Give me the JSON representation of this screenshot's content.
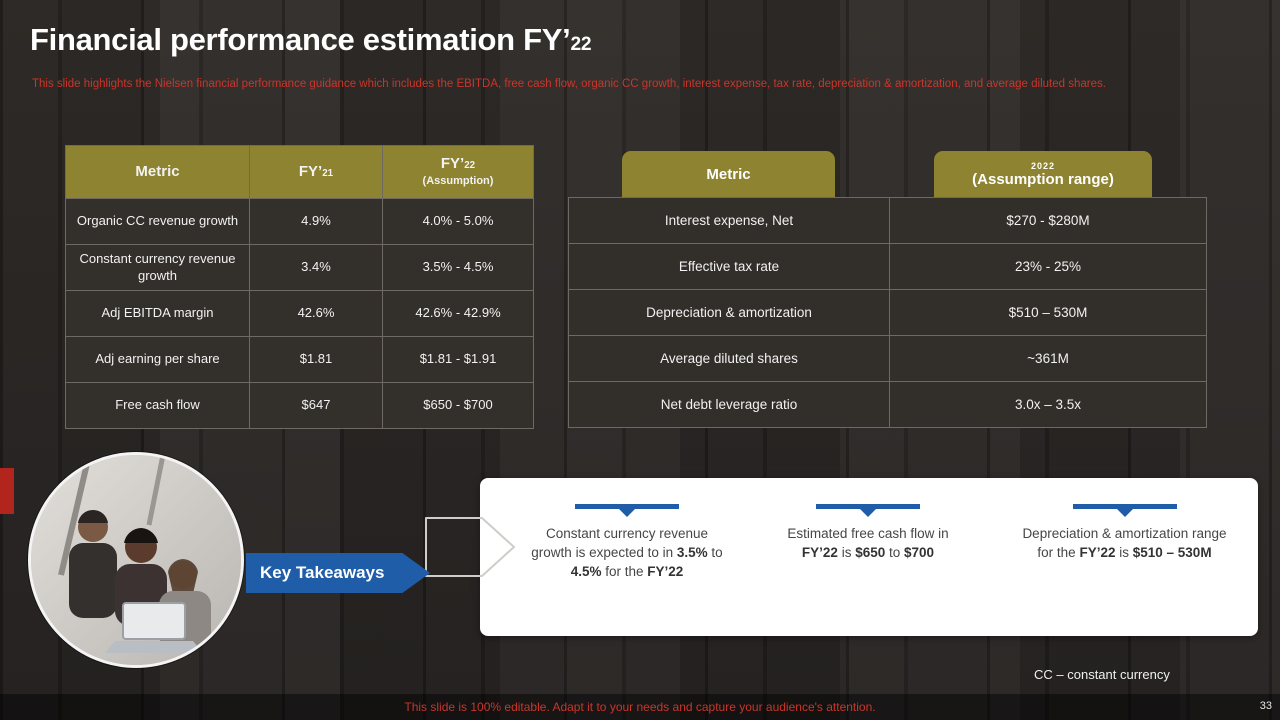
{
  "colors": {
    "gold": "#8e8330",
    "blue": "#1f5da8",
    "red": "#c9362b"
  },
  "slide": {
    "title": {
      "main": "Financial performance estimation FY’",
      "sub": "22"
    },
    "subtitle": "This slide highlights the Nielsen financial performance guidance which includes the EBITDA, free cash flow, organic CC growth, interest expense, tax rate, depreciation & amortization, and average diluted shares.",
    "footnote": "CC – constant currency",
    "footer": "This slide is 100% editable. Adapt it to your needs and capture your audience's attention.",
    "page_number": "33"
  },
  "left_table": {
    "headers": {
      "metric": "Metric",
      "fy21_main": "FY’",
      "fy21_sub": "21",
      "fy22_main": "FY’",
      "fy22_sub": "22",
      "fy22_note": "(Assumption)"
    },
    "rows": [
      [
        "Organic CC revenue growth",
        "4.9%",
        "4.0% - 5.0%"
      ],
      [
        "Constant currency revenue growth",
        "3.4%",
        "3.5% - 4.5%"
      ],
      [
        "Adj EBITDA margin",
        "42.6%",
        "42.6% - 42.9%"
      ],
      [
        "Adj earning per share",
        "$1.81",
        "$1.81 - $1.91"
      ],
      [
        "Free cash flow",
        "$647",
        "$650 - $700"
      ]
    ]
  },
  "right_table": {
    "headers": {
      "metric": "Metric",
      "year": "2022",
      "range": "(Assumption range)"
    },
    "rows": [
      [
        "Interest expense, Net",
        "$270 - $280M"
      ],
      [
        "Effective tax rate",
        "23% - 25%"
      ],
      [
        "Depreciation & amortization",
        "$510 – 530M"
      ],
      [
        "Average diluted shares",
        "~361M"
      ],
      [
        "Net debt leverage ratio",
        "3.0x – 3.5x"
      ]
    ]
  },
  "takeaways": {
    "label": "Key Takeaways",
    "items": [
      {
        "segments": [
          {
            "t": "Constant currency revenue growth is expected to in ",
            "b": false
          },
          {
            "t": "3.5%",
            "b": true
          },
          {
            "t": " to ",
            "b": false
          },
          {
            "t": "4.5%",
            "b": true
          },
          {
            "t": " for the ",
            "b": false
          },
          {
            "t": "FY’22",
            "b": true
          }
        ]
      },
      {
        "segments": [
          {
            "t": "Estimated free cash flow in ",
            "b": false
          },
          {
            "t": "FY’22",
            "b": true
          },
          {
            "t": " is ",
            "b": false
          },
          {
            "t": "$650",
            "b": true
          },
          {
            "t": " to ",
            "b": false
          },
          {
            "t": "$700",
            "b": true
          }
        ]
      },
      {
        "segments": [
          {
            "t": "Depreciation & amortization range for the ",
            "b": false
          },
          {
            "t": "FY’22",
            "b": true
          },
          {
            "t": " is ",
            "b": false
          },
          {
            "t": "$510 – 530M",
            "b": true
          }
        ]
      }
    ]
  }
}
